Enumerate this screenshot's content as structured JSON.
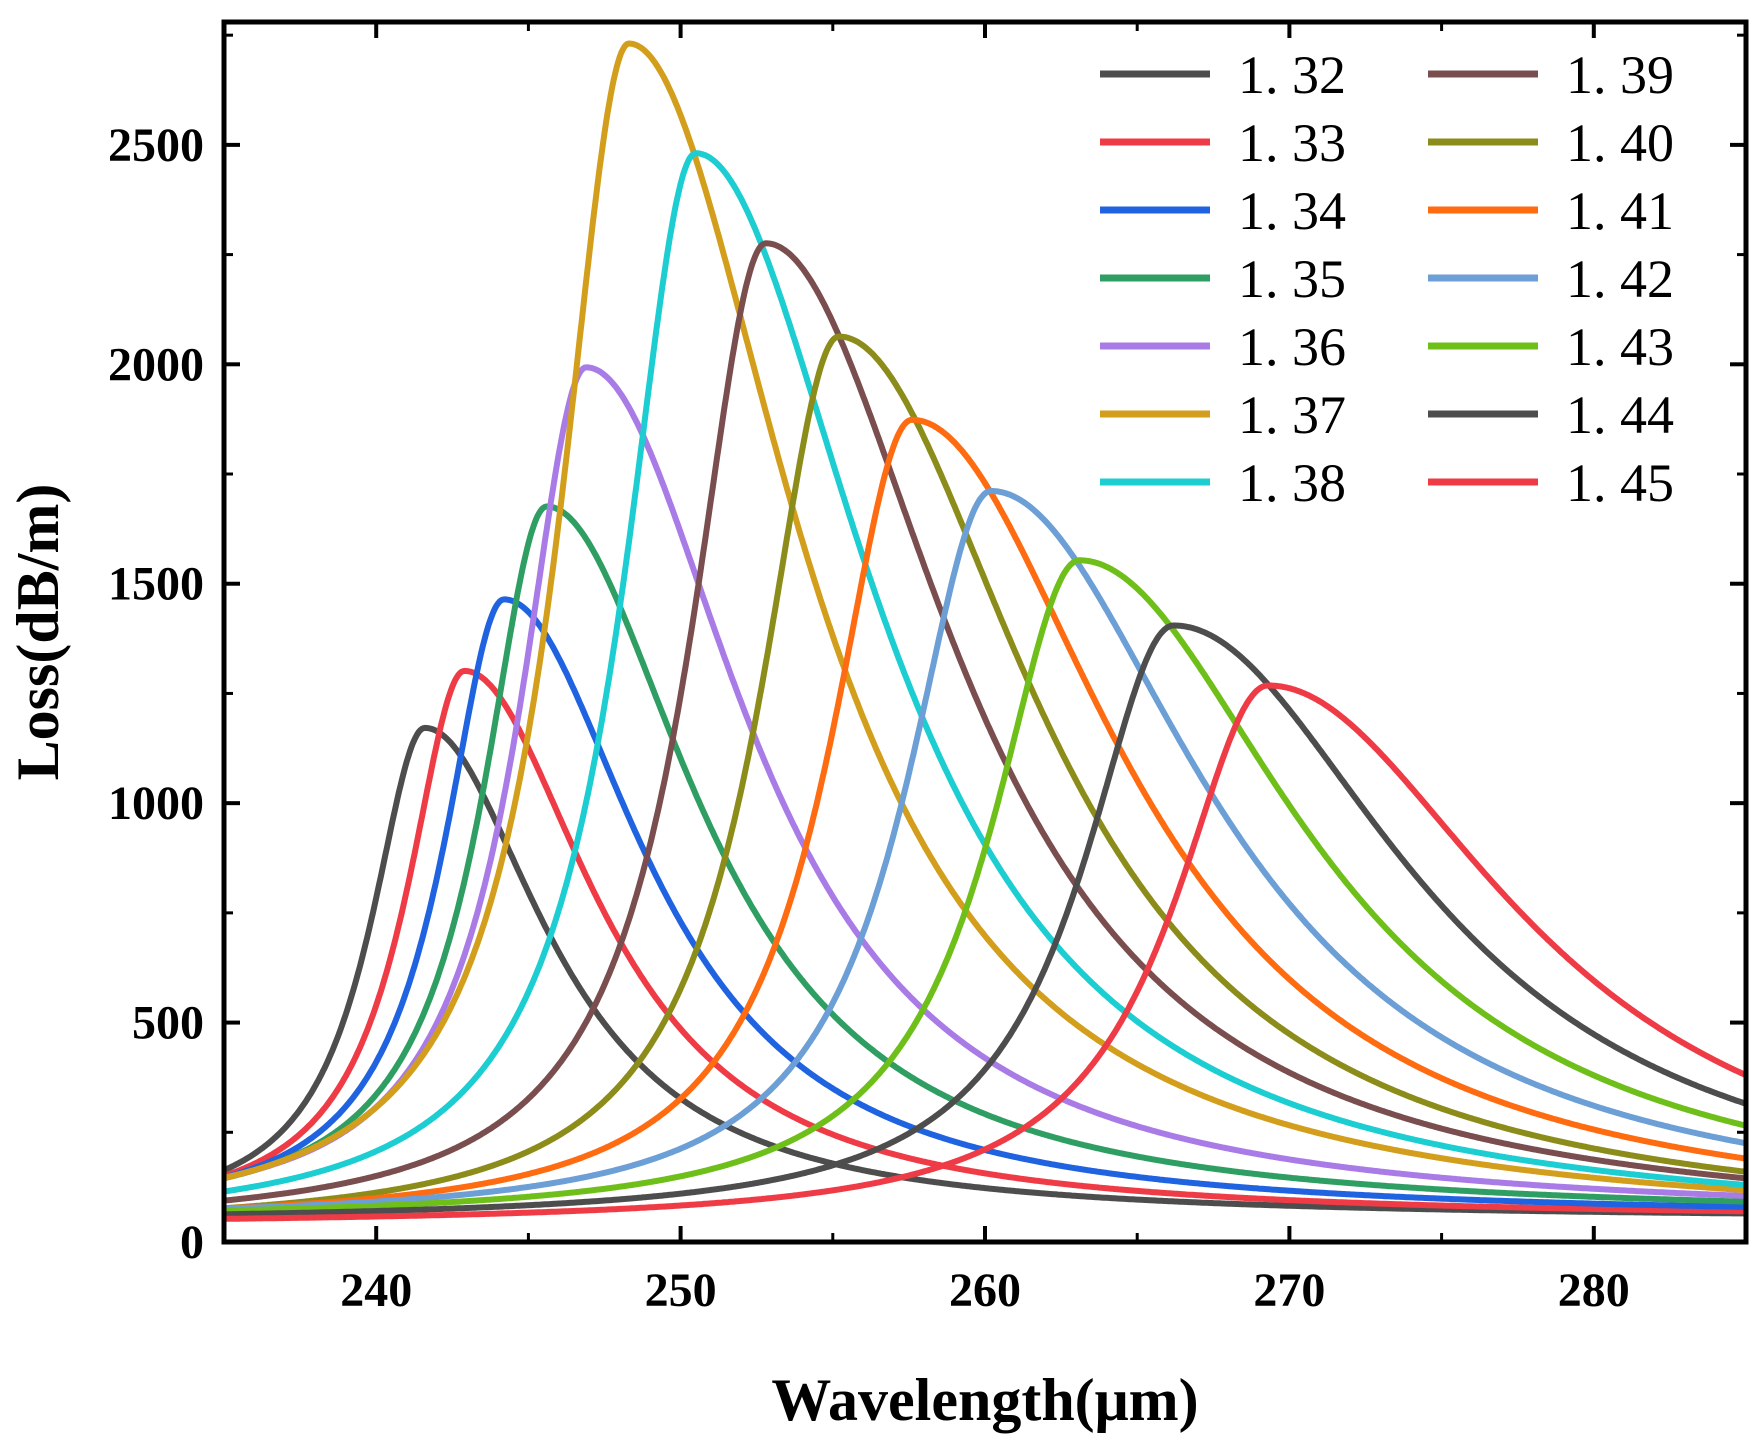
{
  "chart_data": {
    "type": "line",
    "title": "",
    "xlabel": "Wavelength(μm)",
    "ylabel": "Loss(dB/m)",
    "xlim": [
      235,
      285
    ],
    "ylim": [
      0,
      2780
    ],
    "xticks": [
      240,
      250,
      260,
      270,
      280
    ],
    "yticks": [
      0,
      500,
      1000,
      1500,
      2000,
      2500
    ],
    "xtick_labels": [
      "240",
      "250",
      "260",
      "270",
      "280"
    ],
    "ytick_labels": [
      "0",
      "500",
      "1000",
      "1500",
      "2000",
      "2500"
    ],
    "grid": false,
    "legend_position": "top-right",
    "legend_columns": 2,
    "series": [
      {
        "name": "1. 32",
        "color": "#4d4d4d",
        "peak_x": 241.6,
        "peak_y": 1120,
        "tail_y": 65
      },
      {
        "name": "1. 33",
        "color": "#ef3b46",
        "peak_x": 242.9,
        "peak_y": 1250,
        "tail_y": 70
      },
      {
        "name": "1. 34",
        "color": "#1f63e0",
        "peak_x": 244.2,
        "peak_y": 1410,
        "tail_y": 80
      },
      {
        "name": "1. 35",
        "color": "#2f9e63",
        "peak_x": 245.6,
        "peak_y": 1620,
        "tail_y": 92
      },
      {
        "name": "1. 36",
        "color": "#a97be6",
        "peak_x": 246.9,
        "peak_y": 1940,
        "tail_y": 105
      },
      {
        "name": "1. 37",
        "color": "#d29e1b",
        "peak_x": 248.3,
        "peak_y": 2700,
        "tail_y": 118
      },
      {
        "name": "1. 38",
        "color": "#1ccdd1",
        "peak_x": 250.5,
        "peak_y": 2450,
        "tail_y": 130
      },
      {
        "name": "1. 39",
        "color": "#7a4e4e",
        "peak_x": 252.8,
        "peak_y": 2245,
        "tail_y": 145
      },
      {
        "name": "1. 40",
        "color": "#8c8c1a",
        "peak_x": 255.2,
        "peak_y": 2035,
        "tail_y": 160
      },
      {
        "name": "1. 41",
        "color": "#ff6b10",
        "peak_x": 257.6,
        "peak_y": 1835,
        "tail_y": 190
      },
      {
        "name": "1. 42",
        "color": "#6b9fd6",
        "peak_x": 260.2,
        "peak_y": 1665,
        "tail_y": 225
      },
      {
        "name": "1. 43",
        "color": "#6fbf1a",
        "peak_x": 263.1,
        "peak_y": 1505,
        "tail_y": 265
      },
      {
        "name": "1. 44",
        "color": "#4d4d4d",
        "peak_x": 266.2,
        "peak_y": 1360,
        "tail_y": 315
      },
      {
        "name": "1. 45",
        "color": "#ef3b46",
        "peak_x": 269.3,
        "peak_y": 1230,
        "tail_y": 380
      }
    ]
  }
}
